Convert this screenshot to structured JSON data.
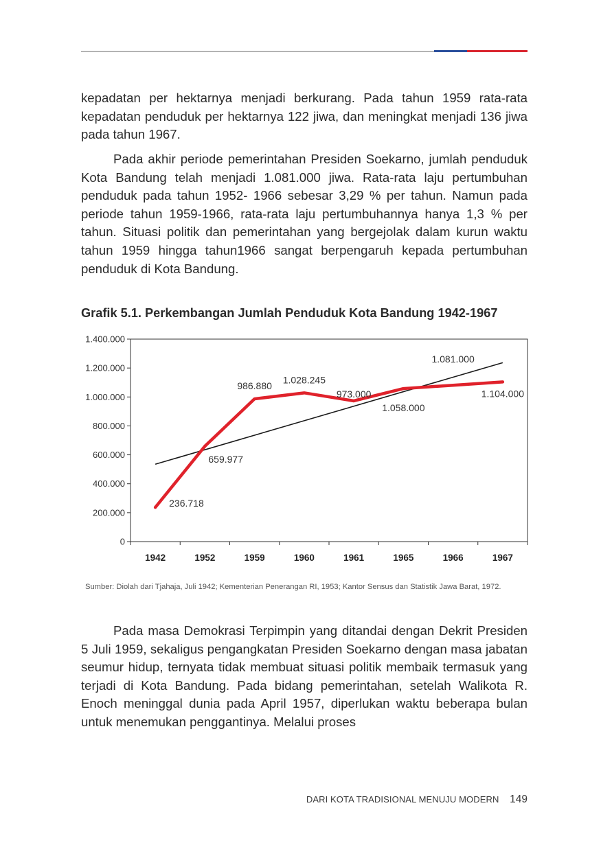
{
  "paragraphs": {
    "p1": "kepadatan per hektarnya menjadi berkurang. Pada tahun 1959 rata-rata kepadatan penduduk per hektarnya 122 jiwa, dan meningkat menjadi 136 jiwa pada tahun 1967.",
    "p2": "Pada akhir periode pemerintahan Presiden Soekarno, jumlah penduduk Kota Bandung telah menjadi 1.081.000 jiwa. Rata-rata laju pertumbuhan penduduk pada tahun 1952- 1966 sebesar 3,29 % per tahun. Namun pada periode tahun 1959-1966, rata-rata laju pertumbuhannya hanya 1,3 % per tahun. Situasi politik dan pemerintahan yang bergejolak dalam kurun waktu tahun 1959 hingga tahun1966 sangat berpengaruh kepada pertumbuhan penduduk di Kota Bandung.",
    "p3": "Pada masa Demokrasi Terpimpin yang ditandai dengan Dekrit Presiden 5 Juli 1959, sekaligus pengangkatan Presiden Soekarno dengan masa jabatan seumur hidup, ternyata tidak membuat situasi politik membaik termasuk yang terjadi di Kota Bandung. Pada bidang pemerintahan, setelah Walikota R. Enoch meninggal dunia pada April 1957, diperlukan waktu beberapa bulan untuk menemukan penggantinya. Melalui proses"
  },
  "chart_data": {
    "type": "line",
    "title": "Grafik 5.1. Perkembangan Jumlah Penduduk Kota Bandung 1942-1967",
    "categories": [
      "1942",
      "1952",
      "1959",
      "1960",
      "1961",
      "1965",
      "1966",
      "1967"
    ],
    "series": [
      {
        "values": [
          236718,
          659977,
          986880,
          1028245,
          973000,
          1058000,
          1081000,
          1104000
        ],
        "color": "#e0222b"
      }
    ],
    "data_labels": [
      "236.718",
      "659.977",
      "986.880",
      "1.028.245",
      "973.000",
      "1.058.000",
      "1.081.000",
      "1.104.000"
    ],
    "trendline": {
      "color": "#1a1a1a",
      "start": 535000,
      "end": 1237000
    },
    "ylim": [
      0,
      1400000
    ],
    "yticks": [
      0,
      200000,
      400000,
      600000,
      800000,
      1000000,
      1200000,
      1400000
    ],
    "ytick_labels": [
      "0",
      "200.000",
      "400.000",
      "600.000",
      "800.000",
      "1.000.000",
      "1.200.000",
      "1.400.000"
    ],
    "grid": false,
    "legend": "none",
    "source": "Sumber: Diolah dari Tjahaja, Juli 1942; Kementerian Penerangan RI, 1953; Kantor Sensus dan Statistik Jawa Barat, 1972."
  },
  "footer": {
    "running_title": "DARI KOTA TRADISIONAL MENUJU MODERN",
    "page_number": "149"
  },
  "colors": {
    "rule_grey": "#b3b3b3",
    "rule_blue": "#2a4f9c",
    "rule_red": "#d9252f"
  }
}
